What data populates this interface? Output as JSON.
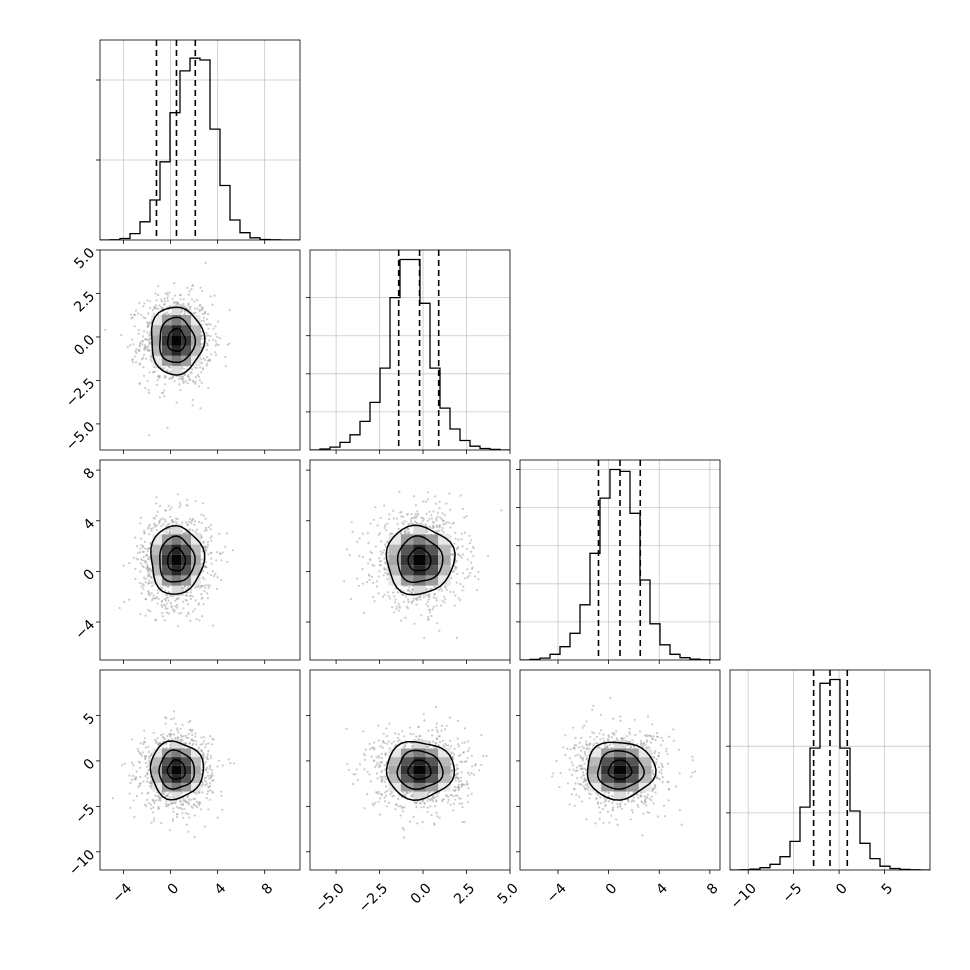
{
  "figure": {
    "type": "corner plot"
  },
  "colors": {
    "axes": "#000000",
    "grid": "#c8c8c8",
    "scatter": "#a0a0a0",
    "contour": "#000000"
  },
  "chart_data": {
    "type": "corner",
    "n_params": 4,
    "params": [
      {
        "range": [
          -6,
          11
        ],
        "ticks": [
          -4,
          0,
          4,
          8
        ],
        "tick_labels": [
          "−4",
          "0",
          "4",
          "8"
        ],
        "quantiles": [
          -1.2,
          0.5,
          2.1
        ],
        "hist": {
          "start": -6,
          "width": 0.85,
          "counts": [
            0.0,
            0.001,
            0.008,
            0.035,
            0.1,
            0.22,
            0.43,
            0.7,
            0.93,
            1.0,
            0.99,
            0.61,
            0.3,
            0.11,
            0.04,
            0.012,
            0.003,
            0.001,
            0.0,
            0.0
          ]
        },
        "diag_ylim": [
          0,
          1.1
        ],
        "diag_yticks": [
          0.44,
          0.88
        ],
        "diag_ygrid": [
          0.44,
          0.88
        ]
      },
      {
        "range": [
          -6.5,
          5
        ],
        "ticks": [
          -5,
          -2.5,
          0,
          2.5,
          5
        ],
        "tick_labels": [
          "−5.0",
          "−2.5",
          "0.0",
          "2.5",
          "5.0"
        ],
        "quantiles": [
          -1.4,
          -0.2,
          0.9
        ],
        "hist": {
          "start": -6.5,
          "width": 0.575,
          "counts": [
            0.0,
            0.005,
            0.015,
            0.04,
            0.08,
            0.15,
            0.25,
            0.43,
            0.8,
            1.0,
            1.0,
            0.77,
            0.43,
            0.22,
            0.11,
            0.05,
            0.02,
            0.008,
            0.003,
            0.0
          ]
        },
        "diag_ylim": [
          0,
          1.05
        ],
        "diag_yticks": [
          0.2,
          0.4,
          0.6,
          0.8
        ],
        "diag_ygrid": [
          0.2,
          0.4,
          0.6,
          0.8
        ]
      },
      {
        "range": [
          -7,
          8.8
        ],
        "ticks": [
          -4,
          0,
          4,
          8
        ],
        "tick_labels": [
          "−4",
          "0",
          "4",
          "8"
        ],
        "quantiles": [
          -0.8,
          0.9,
          2.5
        ],
        "hist": {
          "start": -7,
          "width": 0.79,
          "counts": [
            0.0,
            0.003,
            0.01,
            0.03,
            0.07,
            0.14,
            0.29,
            0.56,
            0.85,
            1.0,
            0.99,
            0.77,
            0.42,
            0.19,
            0.08,
            0.03,
            0.012,
            0.004,
            0.001,
            0.0
          ]
        },
        "diag_ylim": [
          0,
          1.05
        ],
        "diag_yticks": [
          0.2,
          0.4,
          0.6,
          0.8,
          1.0
        ],
        "diag_ygrid": [
          0.2,
          0.4,
          0.6,
          0.8,
          1.0
        ]
      },
      {
        "range": [
          -12,
          10
        ],
        "ticks": [
          -10,
          -5,
          0,
          5
        ],
        "tick_labels": [
          "−10",
          "−5",
          "0",
          "5"
        ],
        "quantiles": [
          -2.8,
          -1.0,
          0.9
        ],
        "hist": {
          "start": -12,
          "width": 1.1,
          "counts": [
            0.0,
            0.001,
            0.004,
            0.012,
            0.03,
            0.07,
            0.15,
            0.33,
            0.64,
            0.98,
            1.0,
            0.64,
            0.31,
            0.14,
            0.06,
            0.02,
            0.008,
            0.003,
            0.001,
            0.0
          ]
        },
        "diag_ylim": [
          0,
          1.05
        ],
        "diag_yticks": [
          0.3,
          0.65
        ],
        "diag_ygrid": [
          0.3,
          0.65
        ]
      }
    ],
    "pairs": [
      {
        "row": 1,
        "col": 0,
        "mean": [
          0.5,
          -0.2
        ],
        "sigma": [
          1.5,
          1.3
        ],
        "n_points": 1100
      },
      {
        "row": 2,
        "col": 0,
        "mean": [
          0.5,
          0.9
        ],
        "sigma": [
          1.5,
          1.8
        ],
        "n_points": 1100
      },
      {
        "row": 2,
        "col": 1,
        "mean": [
          -0.2,
          0.9
        ],
        "sigma": [
          1.3,
          1.8
        ],
        "n_points": 1100
      },
      {
        "row": 3,
        "col": 0,
        "mean": [
          0.5,
          -1.0
        ],
        "sigma": [
          1.5,
          2.1
        ],
        "n_points": 1100
      },
      {
        "row": 3,
        "col": 1,
        "mean": [
          -0.2,
          -1.0
        ],
        "sigma": [
          1.3,
          2.1
        ],
        "n_points": 1100
      },
      {
        "row": 3,
        "col": 2,
        "mean": [
          0.9,
          -1.0
        ],
        "sigma": [
          1.8,
          2.1
        ],
        "n_points": 1100
      }
    ],
    "contour_levels": [
      0.5,
      1.0,
      1.5
    ],
    "density_cells": 9
  }
}
